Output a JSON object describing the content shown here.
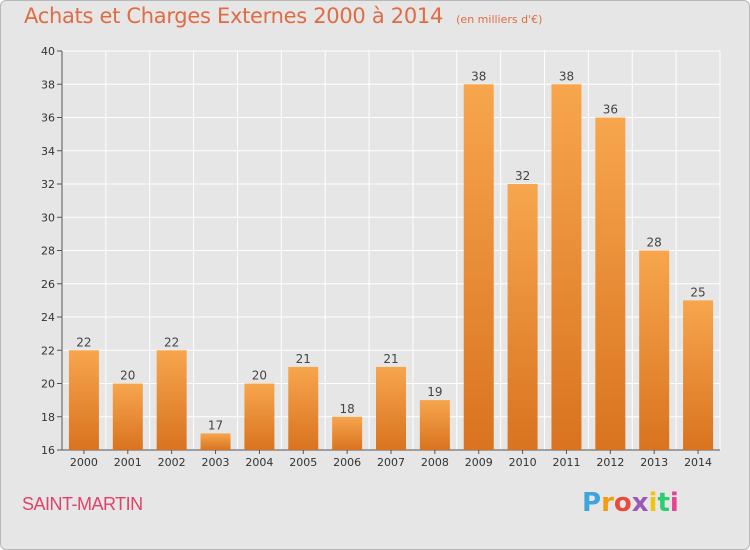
{
  "header": {
    "title": "Achats et Charges Externes 2000 à 2014",
    "unit": "(en milliers d'€)"
  },
  "footer": {
    "commune": "SAINT-MARTIN",
    "logo_text": "Proxiti"
  },
  "colors": {
    "title": "#e06c44",
    "commune": "#e0436a",
    "bar_light": "#f7a64e",
    "bar_dark": "#d9731f",
    "background": "#e6e6e6",
    "grid": "#ffffff"
  },
  "chart_data": {
    "type": "bar",
    "categories": [
      "2000",
      "2001",
      "2002",
      "2003",
      "2004",
      "2005",
      "2006",
      "2007",
      "2008",
      "2009",
      "2010",
      "2011",
      "2012",
      "2013",
      "2014"
    ],
    "values": [
      22,
      20,
      22,
      17,
      20,
      21,
      18,
      21,
      19,
      38,
      32,
      38,
      36,
      28,
      25
    ],
    "ylim": [
      16,
      40
    ],
    "yticks": [
      16,
      18,
      20,
      22,
      24,
      26,
      28,
      30,
      32,
      34,
      36,
      38,
      40
    ],
    "grid": true,
    "legend": "none"
  }
}
